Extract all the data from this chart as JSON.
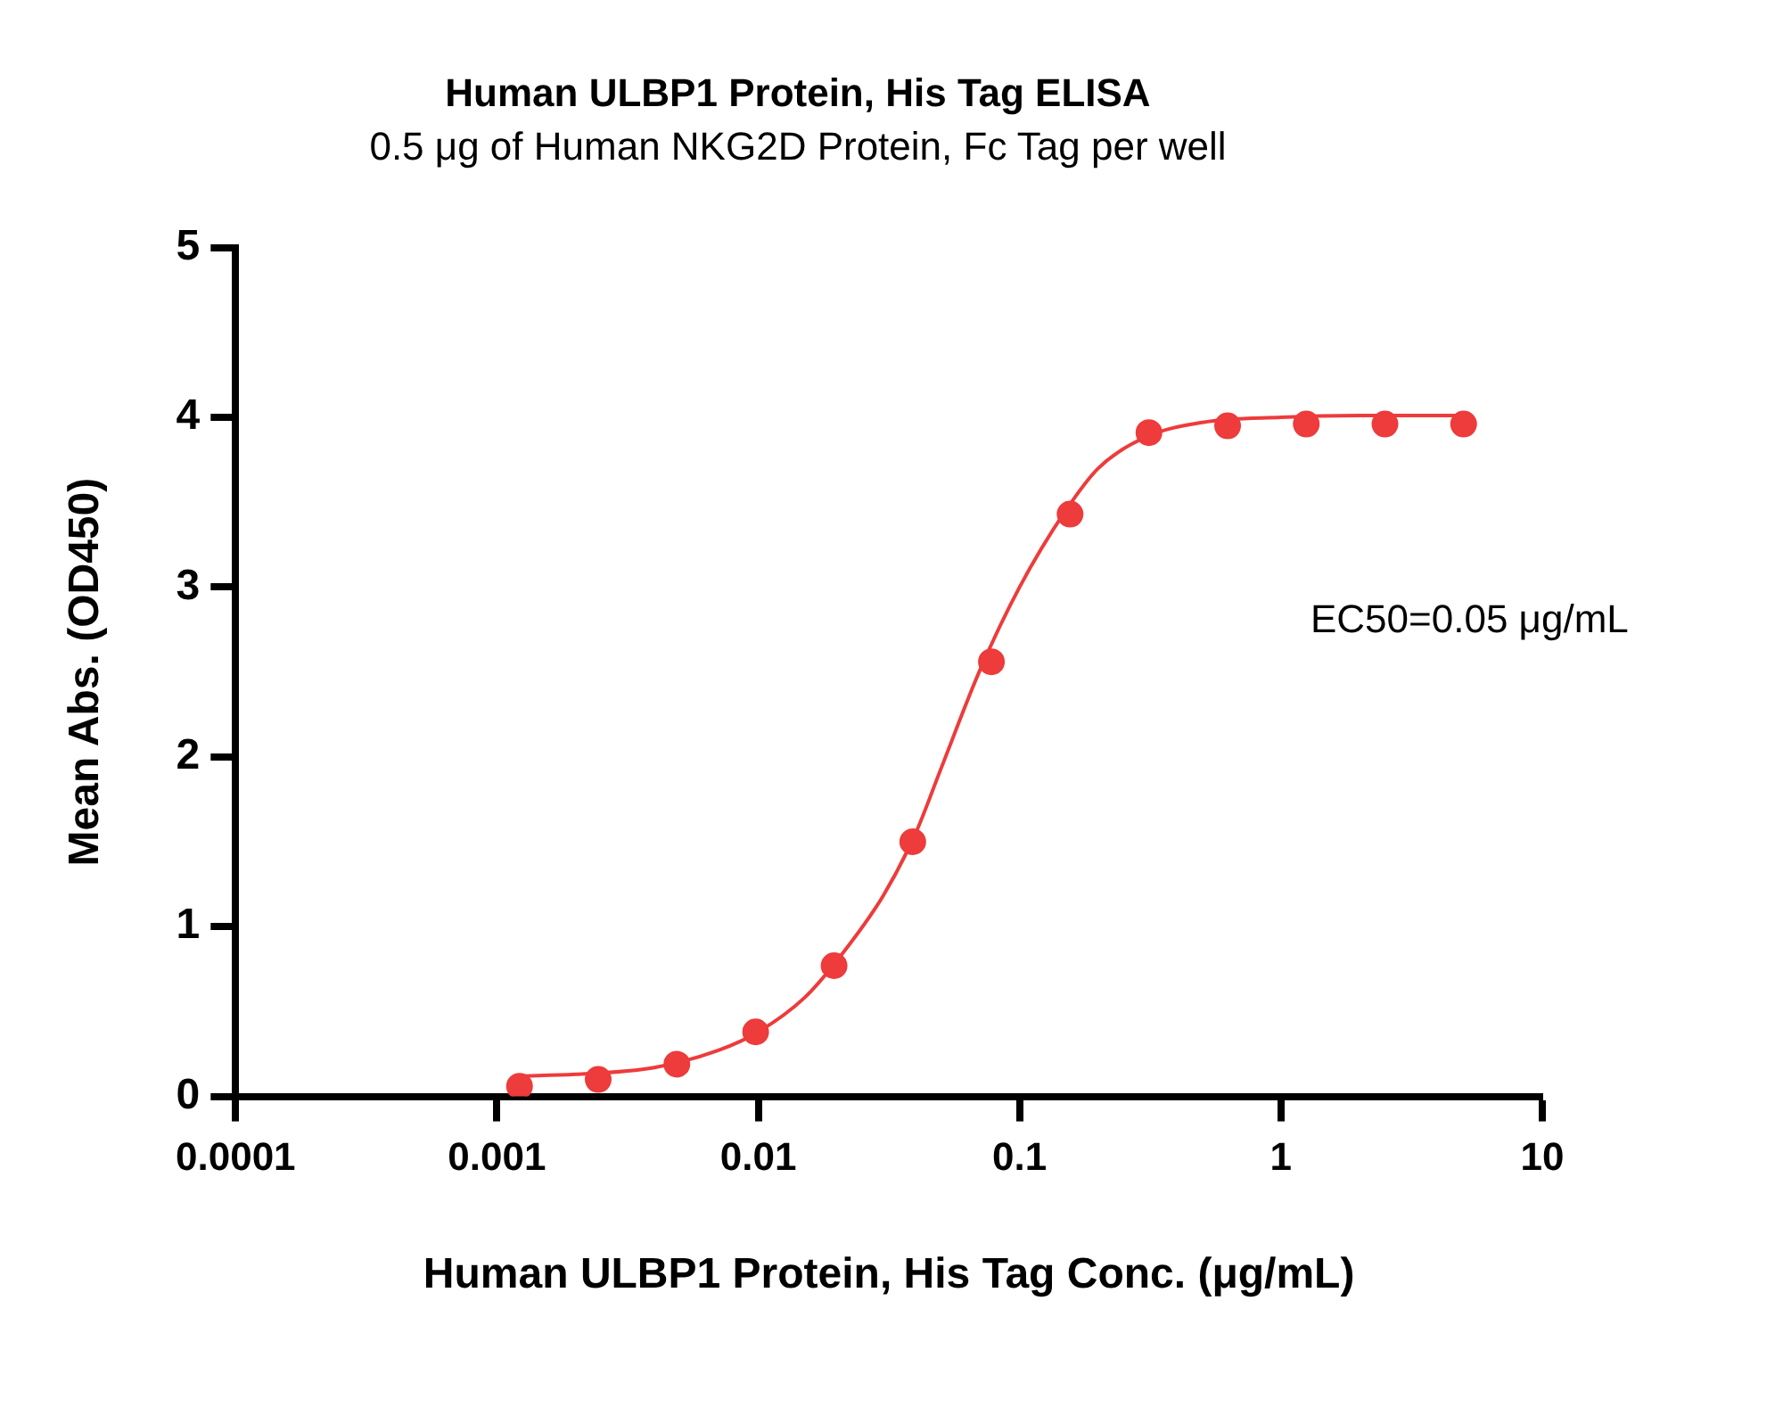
{
  "chart_data": {
    "type": "scatter",
    "title": "Human ULBP1 Protein, His Tag ELISA",
    "subtitle": "0.5 μg of Human NKG2D Protein, Fc Tag per well",
    "xlabel": "Human ULBP1 Protein, His Tag Conc. (μg/mL)",
    "ylabel": "Mean Abs. (OD450)",
    "annotations": [
      "EC50=0.05 μg/mL"
    ],
    "log": "x",
    "grid": false,
    "legend": false,
    "marker": "circle",
    "xlim": [
      0.0001,
      10
    ],
    "xticks": [
      0.0001,
      0.001,
      0.01,
      0.1,
      1,
      10
    ],
    "ylim": [
      0,
      5
    ],
    "yticks": [
      0,
      1,
      2,
      3,
      4,
      5
    ],
    "x": [
      0.00122,
      0.00244,
      0.00488,
      0.00977,
      0.0195,
      0.039,
      0.078,
      0.156,
      0.3125,
      0.625,
      1.25,
      2.5,
      5
    ],
    "series": [
      {
        "color": "#ee3b3b",
        "values": [
          0.06,
          0.1,
          0.19,
          0.38,
          0.77,
          1.5,
          2.56,
          3.43,
          3.91,
          3.95,
          3.96,
          3.96,
          3.96
        ]
      },
      {
        "type": "line",
        "color": "#ee3b3b",
        "marker": "none",
        "line_style": "solid",
        "x": [
          0.00122,
          0.002,
          0.004,
          0.007,
          0.01,
          0.015,
          0.02,
          0.03,
          0.04,
          0.05,
          0.07,
          0.1,
          0.15,
          0.2,
          0.3,
          0.5,
          1,
          2,
          5
        ],
        "values": [
          0.12,
          0.13,
          0.17,
          0.27,
          0.38,
          0.58,
          0.8,
          1.18,
          1.55,
          1.93,
          2.5,
          3.0,
          3.45,
          3.7,
          3.88,
          3.97,
          4.0,
          4.01,
          4.01
        ]
      }
    ]
  }
}
